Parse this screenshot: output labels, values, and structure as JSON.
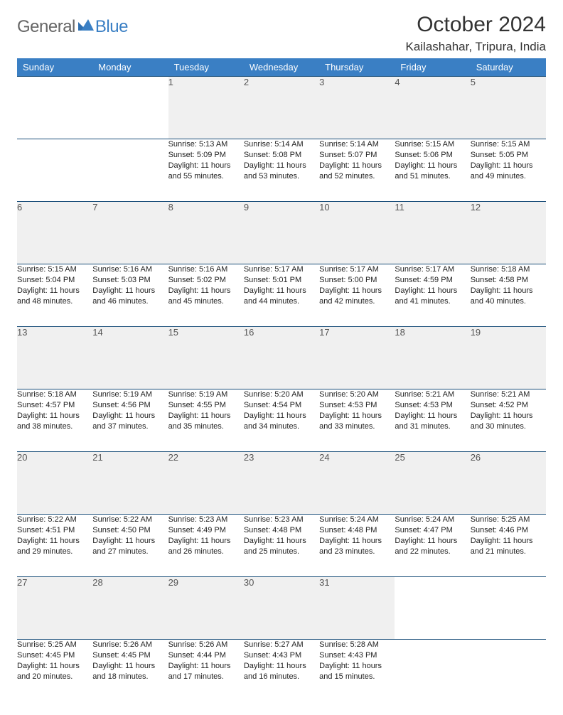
{
  "brand": {
    "part1": "General",
    "part2": "Blue"
  },
  "title": "October 2024",
  "location": "Kailashahar, Tripura, India",
  "colors": {
    "header_bg": "#3a7fc4",
    "header_text": "#ffffff",
    "rule": "#1b4f7a",
    "daynum_bg": "#f0f0f0",
    "body_text": "#222222",
    "logo_gray": "#666666",
    "logo_blue": "#3a7fc4"
  },
  "day_headers": [
    "Sunday",
    "Monday",
    "Tuesday",
    "Wednesday",
    "Thursday",
    "Friday",
    "Saturday"
  ],
  "weeks": [
    [
      null,
      null,
      {
        "n": "1",
        "sr": "5:13 AM",
        "ss": "5:09 PM",
        "dl": "11 hours and 55 minutes."
      },
      {
        "n": "2",
        "sr": "5:14 AM",
        "ss": "5:08 PM",
        "dl": "11 hours and 53 minutes."
      },
      {
        "n": "3",
        "sr": "5:14 AM",
        "ss": "5:07 PM",
        "dl": "11 hours and 52 minutes."
      },
      {
        "n": "4",
        "sr": "5:15 AM",
        "ss": "5:06 PM",
        "dl": "11 hours and 51 minutes."
      },
      {
        "n": "5",
        "sr": "5:15 AM",
        "ss": "5:05 PM",
        "dl": "11 hours and 49 minutes."
      }
    ],
    [
      {
        "n": "6",
        "sr": "5:15 AM",
        "ss": "5:04 PM",
        "dl": "11 hours and 48 minutes."
      },
      {
        "n": "7",
        "sr": "5:16 AM",
        "ss": "5:03 PM",
        "dl": "11 hours and 46 minutes."
      },
      {
        "n": "8",
        "sr": "5:16 AM",
        "ss": "5:02 PM",
        "dl": "11 hours and 45 minutes."
      },
      {
        "n": "9",
        "sr": "5:17 AM",
        "ss": "5:01 PM",
        "dl": "11 hours and 44 minutes."
      },
      {
        "n": "10",
        "sr": "5:17 AM",
        "ss": "5:00 PM",
        "dl": "11 hours and 42 minutes."
      },
      {
        "n": "11",
        "sr": "5:17 AM",
        "ss": "4:59 PM",
        "dl": "11 hours and 41 minutes."
      },
      {
        "n": "12",
        "sr": "5:18 AM",
        "ss": "4:58 PM",
        "dl": "11 hours and 40 minutes."
      }
    ],
    [
      {
        "n": "13",
        "sr": "5:18 AM",
        "ss": "4:57 PM",
        "dl": "11 hours and 38 minutes."
      },
      {
        "n": "14",
        "sr": "5:19 AM",
        "ss": "4:56 PM",
        "dl": "11 hours and 37 minutes."
      },
      {
        "n": "15",
        "sr": "5:19 AM",
        "ss": "4:55 PM",
        "dl": "11 hours and 35 minutes."
      },
      {
        "n": "16",
        "sr": "5:20 AM",
        "ss": "4:54 PM",
        "dl": "11 hours and 34 minutes."
      },
      {
        "n": "17",
        "sr": "5:20 AM",
        "ss": "4:53 PM",
        "dl": "11 hours and 33 minutes."
      },
      {
        "n": "18",
        "sr": "5:21 AM",
        "ss": "4:53 PM",
        "dl": "11 hours and 31 minutes."
      },
      {
        "n": "19",
        "sr": "5:21 AM",
        "ss": "4:52 PM",
        "dl": "11 hours and 30 minutes."
      }
    ],
    [
      {
        "n": "20",
        "sr": "5:22 AM",
        "ss": "4:51 PM",
        "dl": "11 hours and 29 minutes."
      },
      {
        "n": "21",
        "sr": "5:22 AM",
        "ss": "4:50 PM",
        "dl": "11 hours and 27 minutes."
      },
      {
        "n": "22",
        "sr": "5:23 AM",
        "ss": "4:49 PM",
        "dl": "11 hours and 26 minutes."
      },
      {
        "n": "23",
        "sr": "5:23 AM",
        "ss": "4:48 PM",
        "dl": "11 hours and 25 minutes."
      },
      {
        "n": "24",
        "sr": "5:24 AM",
        "ss": "4:48 PM",
        "dl": "11 hours and 23 minutes."
      },
      {
        "n": "25",
        "sr": "5:24 AM",
        "ss": "4:47 PM",
        "dl": "11 hours and 22 minutes."
      },
      {
        "n": "26",
        "sr": "5:25 AM",
        "ss": "4:46 PM",
        "dl": "11 hours and 21 minutes."
      }
    ],
    [
      {
        "n": "27",
        "sr": "5:25 AM",
        "ss": "4:45 PM",
        "dl": "11 hours and 20 minutes."
      },
      {
        "n": "28",
        "sr": "5:26 AM",
        "ss": "4:45 PM",
        "dl": "11 hours and 18 minutes."
      },
      {
        "n": "29",
        "sr": "5:26 AM",
        "ss": "4:44 PM",
        "dl": "11 hours and 17 minutes."
      },
      {
        "n": "30",
        "sr": "5:27 AM",
        "ss": "4:43 PM",
        "dl": "11 hours and 16 minutes."
      },
      {
        "n": "31",
        "sr": "5:28 AM",
        "ss": "4:43 PM",
        "dl": "11 hours and 15 minutes."
      },
      null,
      null
    ]
  ],
  "labels": {
    "sunrise": "Sunrise:",
    "sunset": "Sunset:",
    "daylight": "Daylight:"
  }
}
